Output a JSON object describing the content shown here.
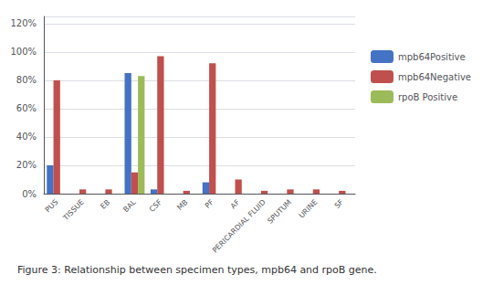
{
  "chart_data": {
    "type": "bar",
    "title": "Figure 3: Relationship between specimen types, mpb64 and rpoB gene.",
    "categories": [
      "PUS",
      "TISSUE",
      "EB",
      "BAL",
      "CSF",
      "MB",
      "PF",
      "AF",
      "PERICARDIAL FLUID",
      "SPUTUM",
      "URINE",
      "SF"
    ],
    "series": [
      {
        "name": "mpb64Positive",
        "color": "#4472C4",
        "values": [
          20,
          0,
          0,
          85,
          3,
          0,
          8,
          0,
          0,
          0,
          0,
          0
        ]
      },
      {
        "name": "mpb64Negative",
        "color": "#C0504D",
        "values": [
          80,
          3,
          3,
          15,
          97,
          2,
          92,
          10,
          2,
          3,
          3,
          2
        ]
      },
      {
        "name": "rpoB Positive",
        "color": "#9BBB59",
        "values": [
          0,
          0,
          0,
          83,
          0,
          0,
          0,
          0,
          0,
          0,
          0,
          0
        ]
      }
    ],
    "ylim": [
      0,
      125
    ],
    "yticks": [
      {
        "value": 0,
        "label": "0%"
      },
      {
        "value": 20,
        "label": "20%"
      },
      {
        "value": 40,
        "label": "40%"
      },
      {
        "value": 60,
        "label": "60%"
      },
      {
        "value": 80,
        "label": "80%"
      },
      {
        "value": 100,
        "label": "100%"
      },
      {
        "value": 120,
        "label": "120%"
      }
    ],
    "grid": true,
    "legend": "right"
  }
}
